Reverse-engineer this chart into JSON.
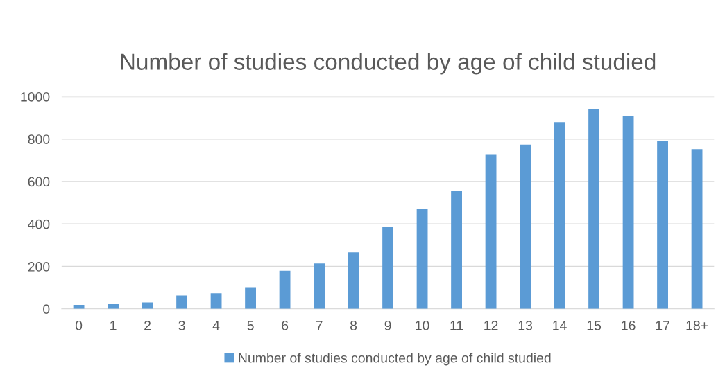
{
  "chart_data": {
    "type": "bar",
    "title": "Number of studies conducted by age of child studied",
    "categories": [
      "0",
      "1",
      "2",
      "3",
      "4",
      "5",
      "6",
      "7",
      "8",
      "9",
      "10",
      "11",
      "12",
      "13",
      "14",
      "15",
      "16",
      "17",
      "18+"
    ],
    "series": [
      {
        "name": "Number of studies conducted by age of child studied",
        "color": "#5b9bd5",
        "values": [
          19,
          22,
          30,
          63,
          74,
          102,
          180,
          214,
          266,
          386,
          470,
          554,
          729,
          774,
          880,
          943,
          908,
          789,
          753
        ]
      }
    ],
    "ylim": [
      0,
      1000
    ],
    "yticks": [
      0,
      200,
      400,
      600,
      800,
      1000
    ],
    "grid": "y",
    "legend": "bottom"
  }
}
